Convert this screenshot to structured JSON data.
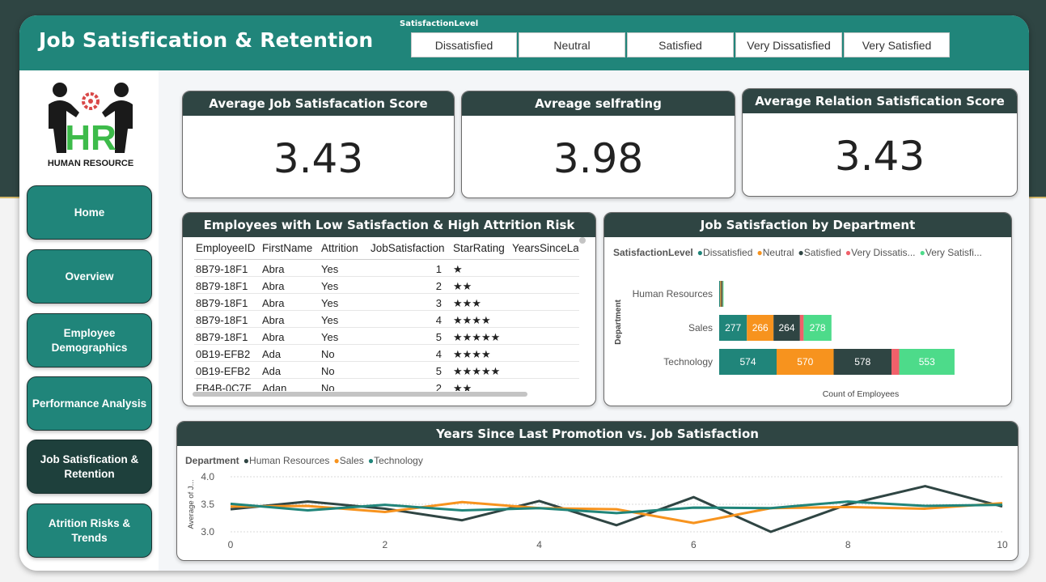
{
  "header": {
    "title": "Job Satisfication & Retention",
    "slicer_label": "SatisfactionLevel",
    "slicer_options": [
      "Dissatisfied",
      "Neutral",
      "Satisfied",
      "Very Dissatisfied",
      "Very Satisfied"
    ]
  },
  "logo": {
    "letters": "HR",
    "caption": "HUMAN RESOURCE"
  },
  "nav": {
    "items": [
      {
        "label": "Home"
      },
      {
        "label": "Overview"
      },
      {
        "label": "Employee Demographics"
      },
      {
        "label": "Performance Analysis"
      },
      {
        "label": "Job Satisfication & Retention"
      },
      {
        "label": "Atrition Risks & Trends"
      }
    ],
    "active_index": 4
  },
  "kpis": [
    {
      "title": "Average Job Satisfacation Score",
      "value": "3.43"
    },
    {
      "title": "Avreage selfrating",
      "value": "3.98"
    },
    {
      "title": "Average Relation Satisfication Score",
      "value": "3.43"
    }
  ],
  "table": {
    "title": "Employees with Low Satisfaction & High Attrition Risk",
    "columns": [
      "EmployeeID",
      "FirstName",
      "Attrition",
      "JobSatisfaction",
      "StarRating",
      "YearsSinceLas"
    ],
    "rows": [
      [
        "8B79-18F1",
        "Abra",
        "Yes",
        "1",
        "★"
      ],
      [
        "8B79-18F1",
        "Abra",
        "Yes",
        "2",
        "★★"
      ],
      [
        "8B79-18F1",
        "Abra",
        "Yes",
        "3",
        "★★★"
      ],
      [
        "8B79-18F1",
        "Abra",
        "Yes",
        "4",
        "★★★★"
      ],
      [
        "8B79-18F1",
        "Abra",
        "Yes",
        "5",
        "★★★★★"
      ],
      [
        "0B19-EFB2",
        "Ada",
        "No",
        "4",
        "★★★★"
      ],
      [
        "0B19-EFB2",
        "Ada",
        "No",
        "5",
        "★★★★★"
      ],
      [
        "FB4B-0C7F",
        "Adan",
        "No",
        "2",
        "★★"
      ]
    ]
  },
  "chart_data": [
    {
      "type": "bar",
      "orientation": "horizontal",
      "stacked": true,
      "title": "Job Satisfaction by Department",
      "legend_title": "SatisfactionLevel",
      "legend_labels": [
        "Dissatisfied",
        "Neutral",
        "Satisfied",
        "Very Dissatis...",
        "Very Satisfi..."
      ],
      "ylabel": "Department",
      "xlabel": "Count of Employees",
      "categories": [
        "Human Resources",
        "Sales",
        "Technology"
      ],
      "series": [
        {
          "name": "Dissatisfied",
          "color": "#20857a",
          "values": [
            11,
            277,
            574
          ],
          "labels": [
            "",
            "277",
            "574"
          ]
        },
        {
          "name": "Neutral",
          "color": "#f7931e",
          "values": [
            10,
            266,
            570
          ],
          "labels": [
            "",
            "266",
            "570"
          ]
        },
        {
          "name": "Satisfied",
          "color": "#2f4543",
          "values": [
            11,
            264,
            578
          ],
          "labels": [
            "",
            "264",
            "578"
          ]
        },
        {
          "name": "Very Dissatisfied",
          "color": "#f0606a",
          "values": [
            3,
            37,
            77
          ],
          "labels": [
            "",
            "",
            ""
          ]
        },
        {
          "name": "Very Satisfied",
          "color": "#4ddb8a",
          "values": [
            9,
            278,
            553
          ],
          "labels": [
            "",
            "278",
            "553"
          ]
        }
      ],
      "legend": "top",
      "grid": false
    },
    {
      "type": "line",
      "title": "Years Since Last Promotion vs. Job Satisfaction",
      "legend_title": "Department",
      "ylabel": "Average of J...",
      "x": [
        0,
        1,
        2,
        3,
        4,
        5,
        6,
        7,
        8,
        9,
        10
      ],
      "xticks": [
        "0",
        "2",
        "4",
        "6",
        "8",
        "10"
      ],
      "xlim": [
        0,
        10
      ],
      "ylim": [
        3.0,
        4.0
      ],
      "yticks": [
        "3.0",
        "3.5",
        "4.0"
      ],
      "series": [
        {
          "name": "Human Resources",
          "color": "#2f4543",
          "values": [
            3.41,
            3.55,
            3.42,
            3.21,
            3.56,
            3.12,
            3.63,
            3.0,
            3.5,
            3.83,
            3.46
          ]
        },
        {
          "name": "Sales",
          "color": "#f7931e",
          "values": [
            3.46,
            3.47,
            3.36,
            3.54,
            3.43,
            3.41,
            3.16,
            3.43,
            3.45,
            3.42,
            3.52
          ]
        },
        {
          "name": "Technology",
          "color": "#20857a",
          "values": [
            3.51,
            3.39,
            3.49,
            3.39,
            3.43,
            3.34,
            3.44,
            3.43,
            3.55,
            3.47,
            3.49
          ]
        }
      ],
      "legend": "top-left",
      "grid": true
    }
  ]
}
